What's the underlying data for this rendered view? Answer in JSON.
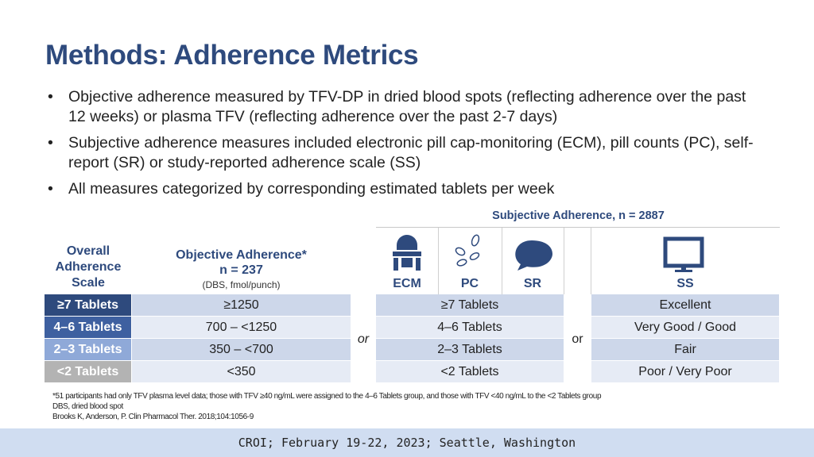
{
  "title": "Methods: Adherence Metrics",
  "bullets": [
    "Objective adherence measured by TFV-DP in dried blood spots (reflecting adherence over the past 12 weeks) or plasma TFV (reflecting adherence over the past 2-7 days)",
    "Subjective adherence measures included electronic pill cap-monitoring (ECM), pill counts (PC), self-report (SR) or study-reported adherence scale (SS)",
    "All measures categorized by corresponding estimated tablets per week"
  ],
  "table": {
    "group_header": "Subjective Adherence, n = 2887",
    "headers": {
      "scale": "Overall Adherence Scale",
      "objective_title": "Objective Adherence*",
      "objective_n": "n = 237",
      "objective_units": "(DBS, fmol/punch)",
      "ecm": "ECM",
      "pc": "PC",
      "sr": "SR",
      "ss": "SS"
    },
    "separators": [
      "or",
      "or"
    ],
    "rows": [
      [
        "≥7 Tablets",
        "≥1250",
        "≥7 Tablets",
        "Excellent"
      ],
      [
        "4–6 Tablets",
        "700 – <1250",
        "4–6 Tablets",
        "Very Good / Good"
      ],
      [
        "2–3 Tablets",
        "350 – <700",
        "2–3 Tablets",
        "Fair"
      ],
      [
        "<2 Tablets",
        "<350",
        "<2 Tablets",
        "Poor / Very Poor"
      ]
    ]
  },
  "footnotes": [
    "*51 participants had only TFV plasma level data; those with TFV ≥40 ng/mL were assigned to the 4–6 Tablets group, and those with TFV <40 ng/mL to the <2 Tablets group",
    "DBS, dried blood spot",
    "Brooks K, Anderson, P. Clin Pharmacol Ther. 2018;104:1056-9"
  ],
  "footer": "CROI; February 19-22, 2023; Seattle, Washington"
}
